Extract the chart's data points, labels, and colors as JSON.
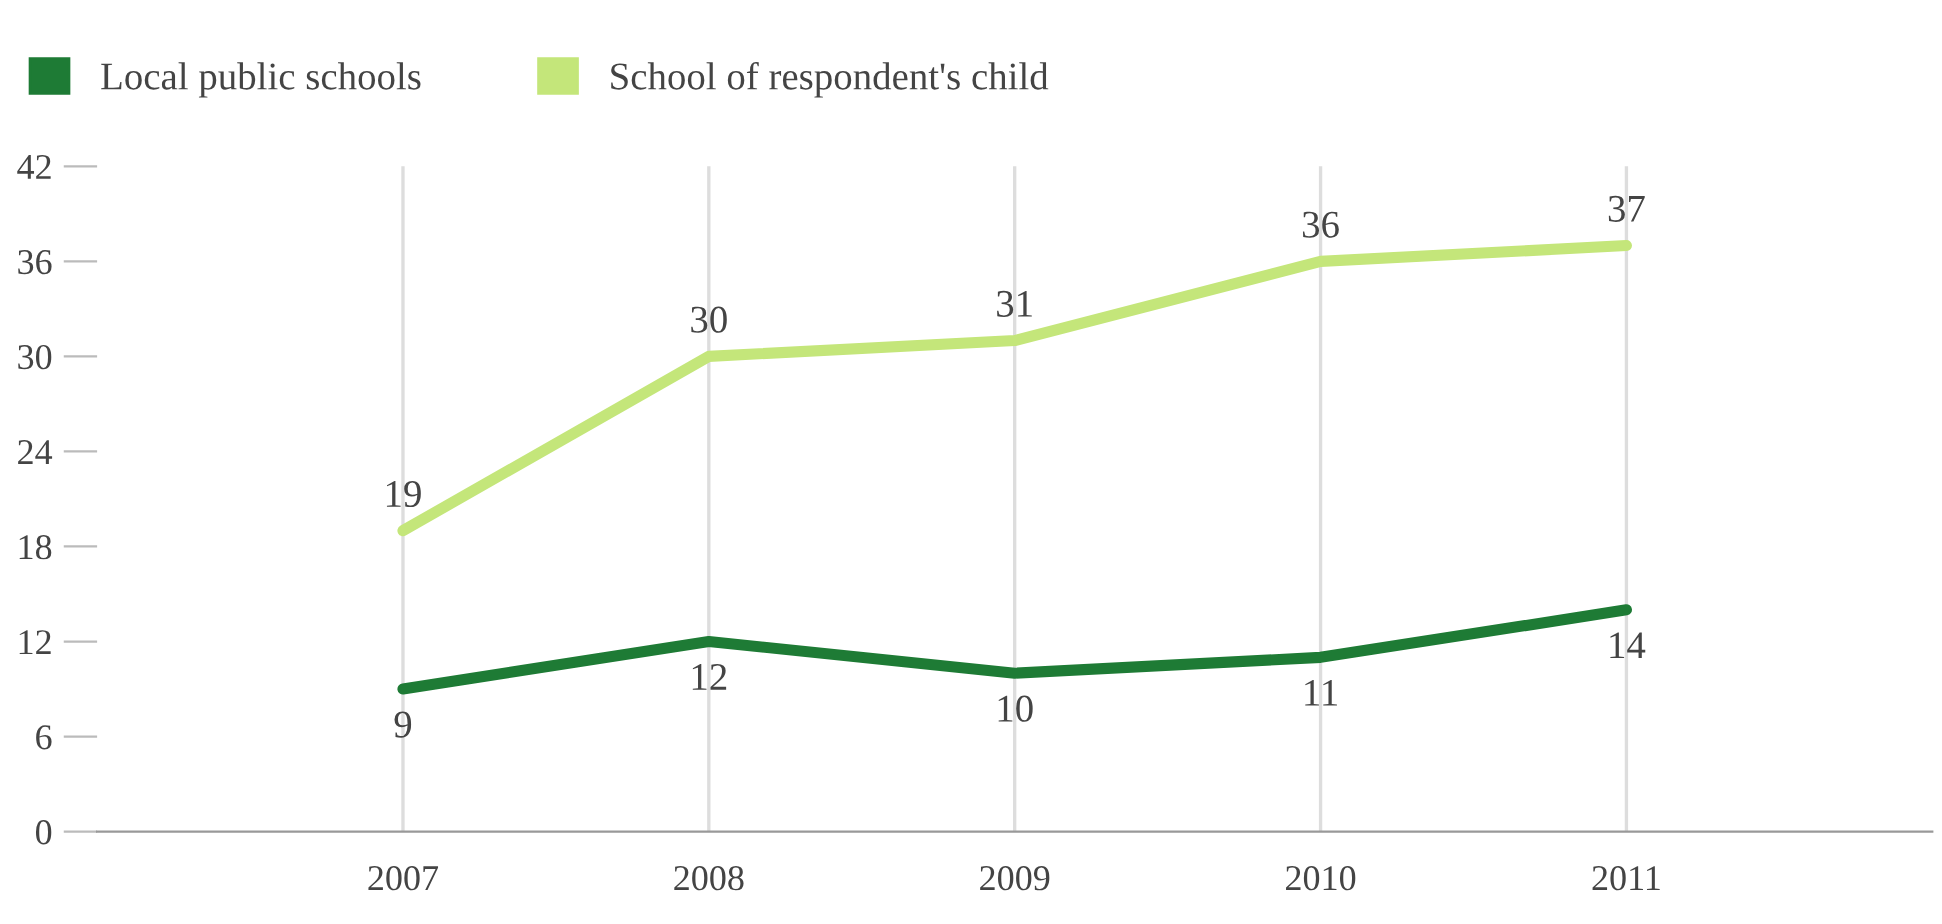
{
  "chart_data": {
    "type": "line",
    "x": [
      2007,
      2008,
      2009,
      2010,
      2011
    ],
    "series": [
      {
        "name": "Local public schools",
        "color": "#1e7b35",
        "values": [
          9,
          12,
          10,
          11,
          14
        ]
      },
      {
        "name": "School of respondent's child",
        "color": "#c4e67a",
        "values": [
          19,
          30,
          31,
          36,
          37
        ]
      }
    ],
    "xlim": [
      2006,
      2012
    ],
    "xticks": [
      2007,
      2008,
      2009,
      2010,
      2011
    ],
    "ylim": [
      0,
      42
    ],
    "yticks": [
      0,
      6,
      12,
      18,
      24,
      30,
      36,
      42
    ],
    "grid": "x",
    "legend": "top left",
    "data_labels": true,
    "marker": "none",
    "line_style": "solid"
  }
}
